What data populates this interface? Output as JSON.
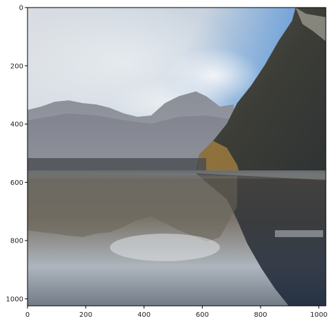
{
  "figure": {
    "x_axis": {
      "range": [
        0,
        1024
      ],
      "ticks": [
        0,
        200,
        400,
        600,
        800,
        1000
      ]
    },
    "y_axis": {
      "range": [
        0,
        1024
      ],
      "ticks": [
        0,
        200,
        400,
        600,
        800,
        1000
      ],
      "inverted": true
    }
  },
  "image_content": {
    "subject": "mountain lake with reflection",
    "colors": {
      "sky_top": "#4f8fd0",
      "sky_haze": "#d8dfe6",
      "mountains": "#6f7380",
      "forest": "#3a3a32",
      "shore_gold": "#9c7a3e",
      "water_dark": "#2a3548",
      "water_light": "#b4bcc6"
    }
  }
}
